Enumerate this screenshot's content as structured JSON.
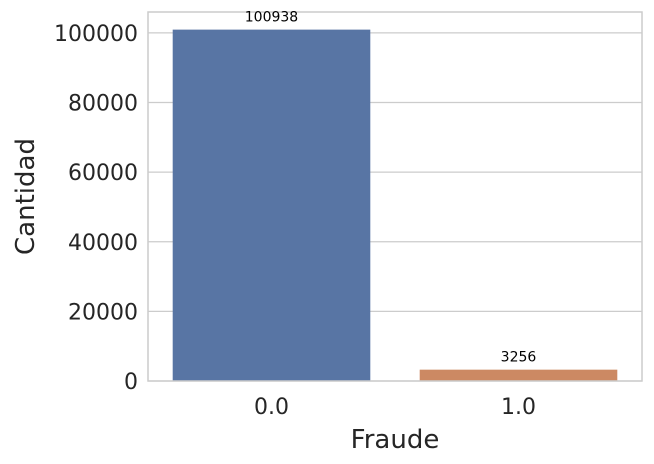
{
  "chart_data": {
    "type": "bar",
    "categories": [
      "0.0",
      "1.0"
    ],
    "values": [
      100938,
      3256
    ],
    "data_labels": [
      "100938",
      "3256"
    ],
    "colors": [
      "#5875a4",
      "#cc8963"
    ],
    "xlabel": "Fraude",
    "ylabel": "Cantidad",
    "ylim": [
      0,
      106000
    ],
    "yticks": [
      0,
      20000,
      40000,
      60000,
      80000,
      100000
    ],
    "ytick_labels": [
      "0",
      "20000",
      "40000",
      "60000",
      "80000",
      "100000"
    ],
    "grid": "horizontal",
    "legend": "none"
  }
}
